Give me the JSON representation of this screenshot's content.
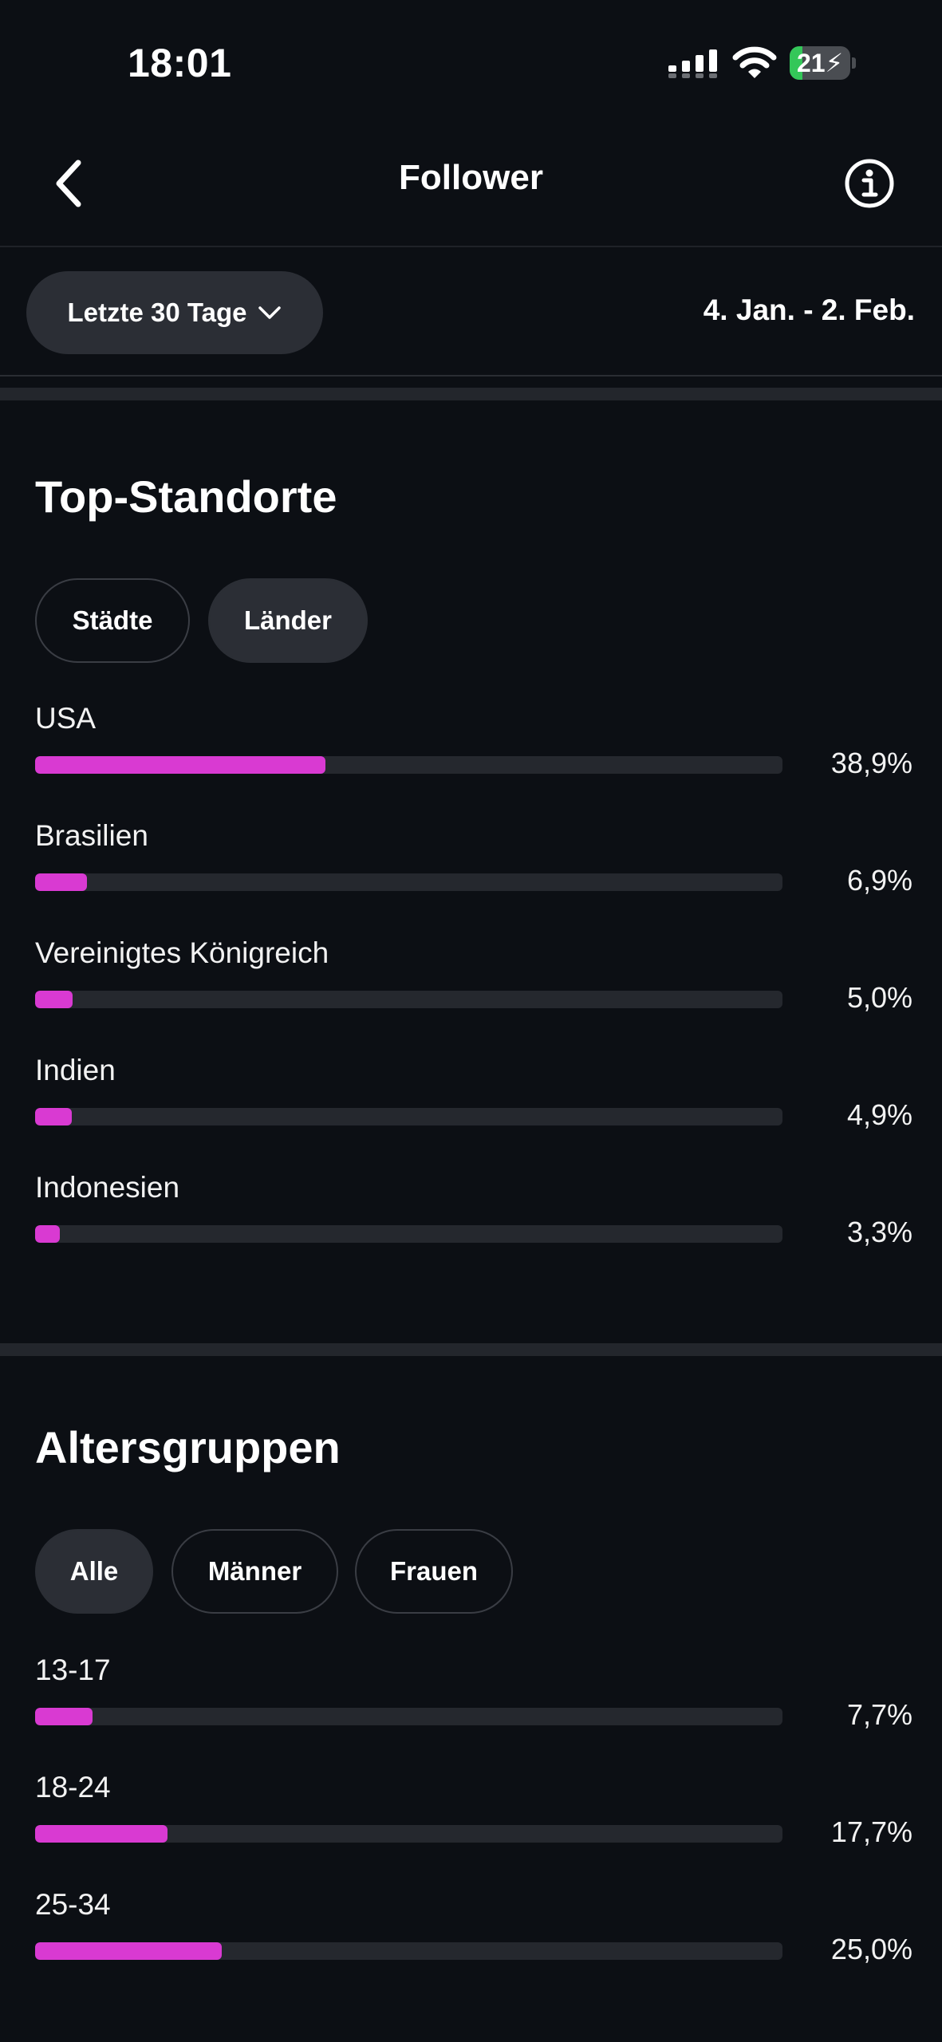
{
  "status_bar": {
    "time": "18:01",
    "battery_level": "21",
    "battery_fraction": 0.21,
    "icons": [
      "signal-icon",
      "wifi-icon",
      "battery-icon"
    ]
  },
  "nav": {
    "title": "Follower",
    "back_icon": "chevron-left-icon",
    "info_icon": "info-icon"
  },
  "filter": {
    "period_label": "Letzte 30 Tage",
    "date_range": "4. Jan. - 2. Feb."
  },
  "locations": {
    "title": "Top-Standorte",
    "chips": [
      {
        "label": "Städte",
        "active": false
      },
      {
        "label": "Länder",
        "active": true
      }
    ],
    "items": [
      {
        "label": "USA",
        "value_text": "38,9%",
        "fraction": 0.389
      },
      {
        "label": "Brasilien",
        "value_text": "6,9%",
        "fraction": 0.069
      },
      {
        "label": "Vereinigtes Königreich",
        "value_text": "5,0%",
        "fraction": 0.05
      },
      {
        "label": "Indien",
        "value_text": "4,9%",
        "fraction": 0.049
      },
      {
        "label": "Indonesien",
        "value_text": "3,3%",
        "fraction": 0.033
      }
    ]
  },
  "age_groups": {
    "title": "Altersgruppen",
    "chips": [
      {
        "label": "Alle",
        "active": true
      },
      {
        "label": "Männer",
        "active": false
      },
      {
        "label": "Frauen",
        "active": false
      }
    ],
    "items": [
      {
        "label": "13-17",
        "value_text": "7,7%",
        "fraction": 0.077
      },
      {
        "label": "18-24",
        "value_text": "17,7%",
        "fraction": 0.177
      },
      {
        "label": "25-34",
        "value_text": "25,0%",
        "fraction": 0.25
      }
    ]
  },
  "colors": {
    "background": "#0c0f14",
    "accent": "#d93ad2",
    "track": "#25282e",
    "chip_active": "#2b2e35",
    "battery_green": "#34c759"
  }
}
